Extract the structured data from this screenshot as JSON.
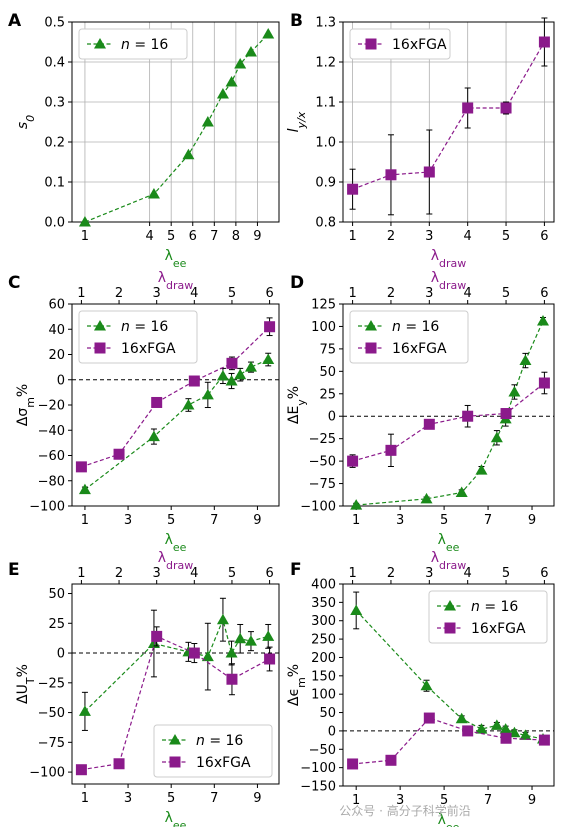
{
  "colors": {
    "green": "#1a8a1a",
    "purple": "#8b1a8b"
  },
  "watermark": "公众号 · 高分子科学前沿",
  "chart_data": [
    {
      "panel": "A",
      "type": "line",
      "xlabel_main": "λ",
      "xlabel_sub": "ee",
      "ylabel_main": "s",
      "ylabel_sub": "0",
      "xlim": [
        0.4,
        10.0
      ],
      "ylim": [
        0,
        0.5
      ],
      "xticks": [
        1,
        4,
        5,
        6,
        7,
        8,
        9
      ],
      "yticks": [
        0.0,
        0.1,
        0.2,
        0.3,
        0.4,
        0.5
      ],
      "ytick_labels": [
        "0.0",
        "0.1",
        "0.2",
        "0.3",
        "0.4",
        "0.5"
      ],
      "grid": true,
      "legend": "upper-left",
      "series": [
        {
          "name": "n = 16",
          "name_italic": "n",
          "name_rest": " = 16",
          "color": "green",
          "marker": "triangle",
          "x": [
            1,
            4.2,
            5.8,
            6.7,
            7.4,
            7.8,
            8.2,
            8.7,
            9.5
          ],
          "y": [
            0.0,
            0.07,
            0.168,
            0.25,
            0.32,
            0.35,
            0.395,
            0.425,
            0.47
          ]
        }
      ]
    },
    {
      "panel": "B",
      "type": "line",
      "xlabel_main": "λ",
      "xlabel_sub": "draw",
      "ylabel_main": "l",
      "ylabel_sub": "y/x",
      "xlim": [
        0.75,
        6.25
      ],
      "ylim": [
        0.8,
        1.3
      ],
      "xticks": [
        1,
        2,
        3,
        4,
        5,
        6
      ],
      "yticks": [
        0.8,
        0.9,
        1.0,
        1.1,
        1.2,
        1.3
      ],
      "ytick_labels": [
        "0.8",
        "0.9",
        "1.0",
        "1.1",
        "1.2",
        "1.3"
      ],
      "grid": true,
      "legend": "upper-left",
      "series": [
        {
          "name": "16xFGA",
          "color": "purple",
          "marker": "square",
          "x": [
            1,
            2,
            3,
            4,
            5,
            6
          ],
          "y": [
            0.882,
            0.918,
            0.925,
            1.085,
            1.085,
            1.25
          ],
          "err": [
            0.05,
            0.1,
            0.105,
            0.05,
            0.015,
            0.06
          ]
        }
      ]
    },
    {
      "panel": "C",
      "type": "line",
      "xlabel_main": "λ",
      "xlabel_sub": "ee",
      "top_xlabel_main": "λ",
      "top_xlabel_sub": "draw",
      "ylabel_main": "Δσ",
      "ylabel_sub": "m",
      "ylabel_suffix": "%",
      "xlim": [
        0.4,
        10.0
      ],
      "ylim": [
        -100,
        60
      ],
      "xticks": [
        1,
        3,
        5,
        7,
        9
      ],
      "top_xlim": [
        0.75,
        6.25
      ],
      "top_xticks": [
        1,
        2,
        3,
        4,
        5,
        6
      ],
      "yticks": [
        -100,
        -80,
        -60,
        -40,
        -20,
        0,
        20,
        40,
        60
      ],
      "ytick_labels": [
        "−100",
        "−80",
        "−60",
        "−40",
        "−20",
        "0",
        "20",
        "40",
        "60"
      ],
      "grid": false,
      "legend": "upper-left",
      "zero_line": true,
      "series": [
        {
          "name": "n = 16",
          "name_italic": "n",
          "name_rest": " = 16",
          "color": "green",
          "marker": "triangle",
          "axis": "bottom",
          "x": [
            1,
            4.2,
            5.8,
            6.7,
            7.4,
            7.8,
            8.2,
            8.7,
            9.5
          ],
          "y": [
            -87,
            -45,
            -20,
            -12,
            3,
            -1,
            4,
            10,
            16
          ],
          "err": [
            2,
            6,
            5,
            10,
            6,
            6,
            5,
            4,
            5
          ]
        },
        {
          "name": "16xFGA",
          "color": "purple",
          "marker": "square",
          "axis": "top",
          "x": [
            1,
            2,
            3,
            4,
            5,
            6
          ],
          "y": [
            -69,
            -59,
            -18,
            -1,
            13,
            42
          ],
          "err": [
            2,
            2,
            3,
            2,
            5,
            7
          ]
        }
      ]
    },
    {
      "panel": "D",
      "type": "line",
      "xlabel_main": "λ",
      "xlabel_sub": "ee",
      "top_xlabel_main": "λ",
      "top_xlabel_sub": "draw",
      "ylabel_main": "ΔE",
      "ylabel_sub": "y",
      "ylabel_suffix": "%",
      "xlim": [
        0.4,
        10.0
      ],
      "ylim": [
        -100,
        125
      ],
      "xticks": [
        1,
        3,
        5,
        7,
        9
      ],
      "top_xlim": [
        0.75,
        6.25
      ],
      "top_xticks": [
        1,
        2,
        3,
        4,
        5,
        6
      ],
      "yticks": [
        -100,
        -75,
        -50,
        -25,
        0,
        25,
        50,
        75,
        100,
        125
      ],
      "ytick_labels": [
        "−100",
        "−75",
        "−50",
        "−25",
        "0",
        "25",
        "50",
        "75",
        "100",
        "125"
      ],
      "grid": false,
      "legend": "upper-left",
      "zero_line": true,
      "series": [
        {
          "name": "n = 16",
          "name_italic": "n",
          "name_rest": " = 16",
          "color": "green",
          "marker": "triangle",
          "axis": "bottom",
          "x": [
            1,
            4.2,
            5.8,
            6.7,
            7.4,
            7.8,
            8.2,
            8.7,
            9.5
          ],
          "y": [
            -99,
            -92,
            -85,
            -60,
            -24,
            -3,
            27,
            62,
            106
          ],
          "err": [
            2,
            2,
            3,
            4,
            8,
            8,
            8,
            8,
            4
          ]
        },
        {
          "name": "16xFGA",
          "color": "purple",
          "marker": "square",
          "axis": "top",
          "x": [
            1,
            2,
            3,
            4,
            5,
            6
          ],
          "y": [
            -50,
            -38,
            -9,
            0,
            3,
            37
          ],
          "err": [
            7,
            18,
            3,
            12,
            3,
            12
          ]
        }
      ]
    },
    {
      "panel": "E",
      "type": "line",
      "xlabel_main": "λ",
      "xlabel_sub": "ee",
      "top_xlabel_main": "λ",
      "top_xlabel_sub": "draw",
      "ylabel_main": "ΔU",
      "ylabel_sub": "T",
      "ylabel_suffix": "%",
      "xlim": [
        0.4,
        10.0
      ],
      "ylim": [
        -110,
        58
      ],
      "xticks": [
        1,
        3,
        5,
        7,
        9
      ],
      "top_xlim": [
        0.75,
        6.25
      ],
      "top_xticks": [
        1,
        2,
        3,
        4,
        5,
        6
      ],
      "yticks": [
        -100,
        -75,
        -50,
        -25,
        0,
        25,
        50
      ],
      "ytick_labels": [
        "−100",
        "−75",
        "−50",
        "−25",
        "0",
        "25",
        "50"
      ],
      "grid": false,
      "legend": "lower-right",
      "zero_line": true,
      "series": [
        {
          "name": "n = 16",
          "name_italic": "n",
          "name_rest": " = 16",
          "color": "green",
          "marker": "triangle",
          "axis": "bottom",
          "x": [
            1,
            4.2,
            5.8,
            6.7,
            7.4,
            7.8,
            8.2,
            8.7,
            9.5
          ],
          "y": [
            -49,
            8,
            1,
            -3,
            28,
            0,
            12,
            10,
            14
          ],
          "err": [
            16,
            28,
            8,
            28,
            18,
            10,
            12,
            8,
            10
          ]
        },
        {
          "name": "16xFGA",
          "color": "purple",
          "marker": "square",
          "axis": "top",
          "x": [
            1,
            2,
            3,
            4,
            5,
            6
          ],
          "y": [
            -98,
            -93,
            14,
            0,
            -22,
            -5
          ],
          "err": [
            2,
            2,
            8,
            8,
            13,
            10
          ]
        }
      ]
    },
    {
      "panel": "F",
      "type": "line",
      "xlabel_main": "λ",
      "xlabel_sub": "ee",
      "top_xlabel_main": "λ",
      "top_xlabel_sub": "draw",
      "ylabel_main": "Δϵ",
      "ylabel_sub": "m",
      "ylabel_suffix": "%",
      "xlim": [
        0.4,
        10.0
      ],
      "ylim": [
        -150,
        400
      ],
      "xticks": [
        1,
        3,
        5,
        7,
        9
      ],
      "top_xlim": [
        0.75,
        6.25
      ],
      "top_xticks": [
        1,
        2,
        3,
        4,
        5,
        6
      ],
      "yticks": [
        -150,
        -100,
        -50,
        0,
        50,
        100,
        150,
        200,
        250,
        300,
        350,
        400
      ],
      "ytick_labels": [
        "−150",
        "−100",
        "−50",
        "0",
        "50",
        "100",
        "150",
        "200",
        "250",
        "300",
        "350",
        "400"
      ],
      "grid": false,
      "legend": "upper-right",
      "zero_line": true,
      "series": [
        {
          "name": "n = 16",
          "name_italic": "n",
          "name_rest": " = 16",
          "color": "green",
          "marker": "triangle",
          "axis": "bottom",
          "x": [
            1,
            4.2,
            5.8,
            6.7,
            7.4,
            7.8,
            8.2,
            8.7,
            9.5
          ],
          "y": [
            328,
            123,
            33,
            5,
            15,
            5,
            -5,
            -12,
            -22
          ],
          "err": [
            50,
            15,
            8,
            10,
            8,
            8,
            8,
            8,
            8
          ]
        },
        {
          "name": "16xFGA",
          "color": "purple",
          "marker": "square",
          "axis": "top",
          "x": [
            1,
            2,
            3,
            4,
            5,
            6
          ],
          "y": [
            -90,
            -80,
            35,
            0,
            -20,
            -25
          ],
          "err": [
            8,
            5,
            8,
            5,
            5,
            5
          ]
        }
      ]
    }
  ]
}
